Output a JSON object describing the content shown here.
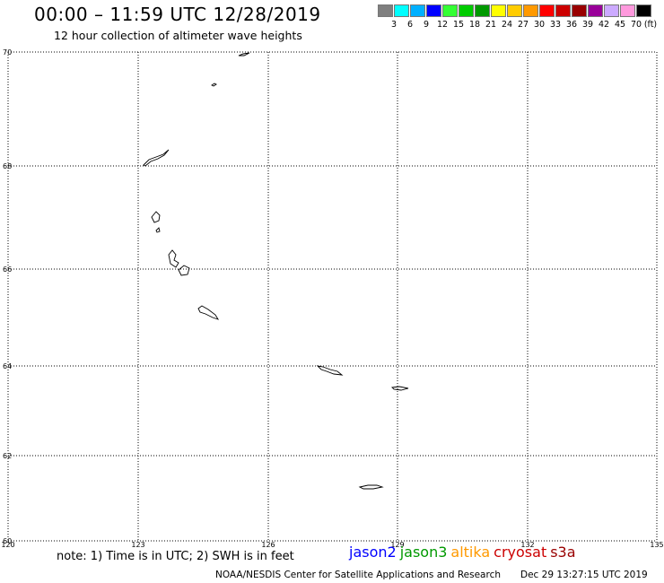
{
  "header": {
    "title": "00:00 – 11:59 UTC 12/28/2019",
    "subtitle": "12 hour collection of altimeter wave heights"
  },
  "color_scale": {
    "unit_label": "(ft)",
    "bins": [
      {
        "label": "3",
        "color": "#7f7f7f"
      },
      {
        "label": "6",
        "color": "#00ffff"
      },
      {
        "label": "9",
        "color": "#00b0ff"
      },
      {
        "label": "12",
        "color": "#0000ff"
      },
      {
        "label": "15",
        "color": "#33ff33"
      },
      {
        "label": "18",
        "color": "#00cc00"
      },
      {
        "label": "21",
        "color": "#009900"
      },
      {
        "label": "24",
        "color": "#ffff00"
      },
      {
        "label": "27",
        "color": "#ffcc00"
      },
      {
        "label": "30",
        "color": "#ff9900"
      },
      {
        "label": "33",
        "color": "#ff0000"
      },
      {
        "label": "36",
        "color": "#cc0000"
      },
      {
        "label": "39",
        "color": "#990000"
      },
      {
        "label": "42",
        "color": "#990099"
      },
      {
        "label": "45",
        "color": "#ccaaff"
      },
      {
        "label": "70",
        "color": "#ff99dd"
      },
      {
        "label": "",
        "color": "#000000"
      }
    ]
  },
  "map": {
    "lon_labels": [
      "120",
      "123",
      "126",
      "129",
      "132",
      "135"
    ],
    "lat_labels": [
      "70",
      "68",
      "66",
      "64",
      "62",
      "60"
    ],
    "grid": "dotted"
  },
  "note": "note: 1) Time is in UTC; 2) SWH is in feet",
  "satellites": [
    {
      "name": "jason2",
      "color": "#0000ff"
    },
    {
      "name": "jason3",
      "color": "#009900"
    },
    {
      "name": "altika",
      "color": "#ff9900"
    },
    {
      "name": "cryosat",
      "color": "#cc0000"
    },
    {
      "name": "s3a",
      "color": "#990000"
    }
  ],
  "footer": {
    "credit": "NOAA/NESDIS Center for Satellite Applications and Research",
    "timestamp": "Dec 29 13:27:15 UTC 2019"
  }
}
